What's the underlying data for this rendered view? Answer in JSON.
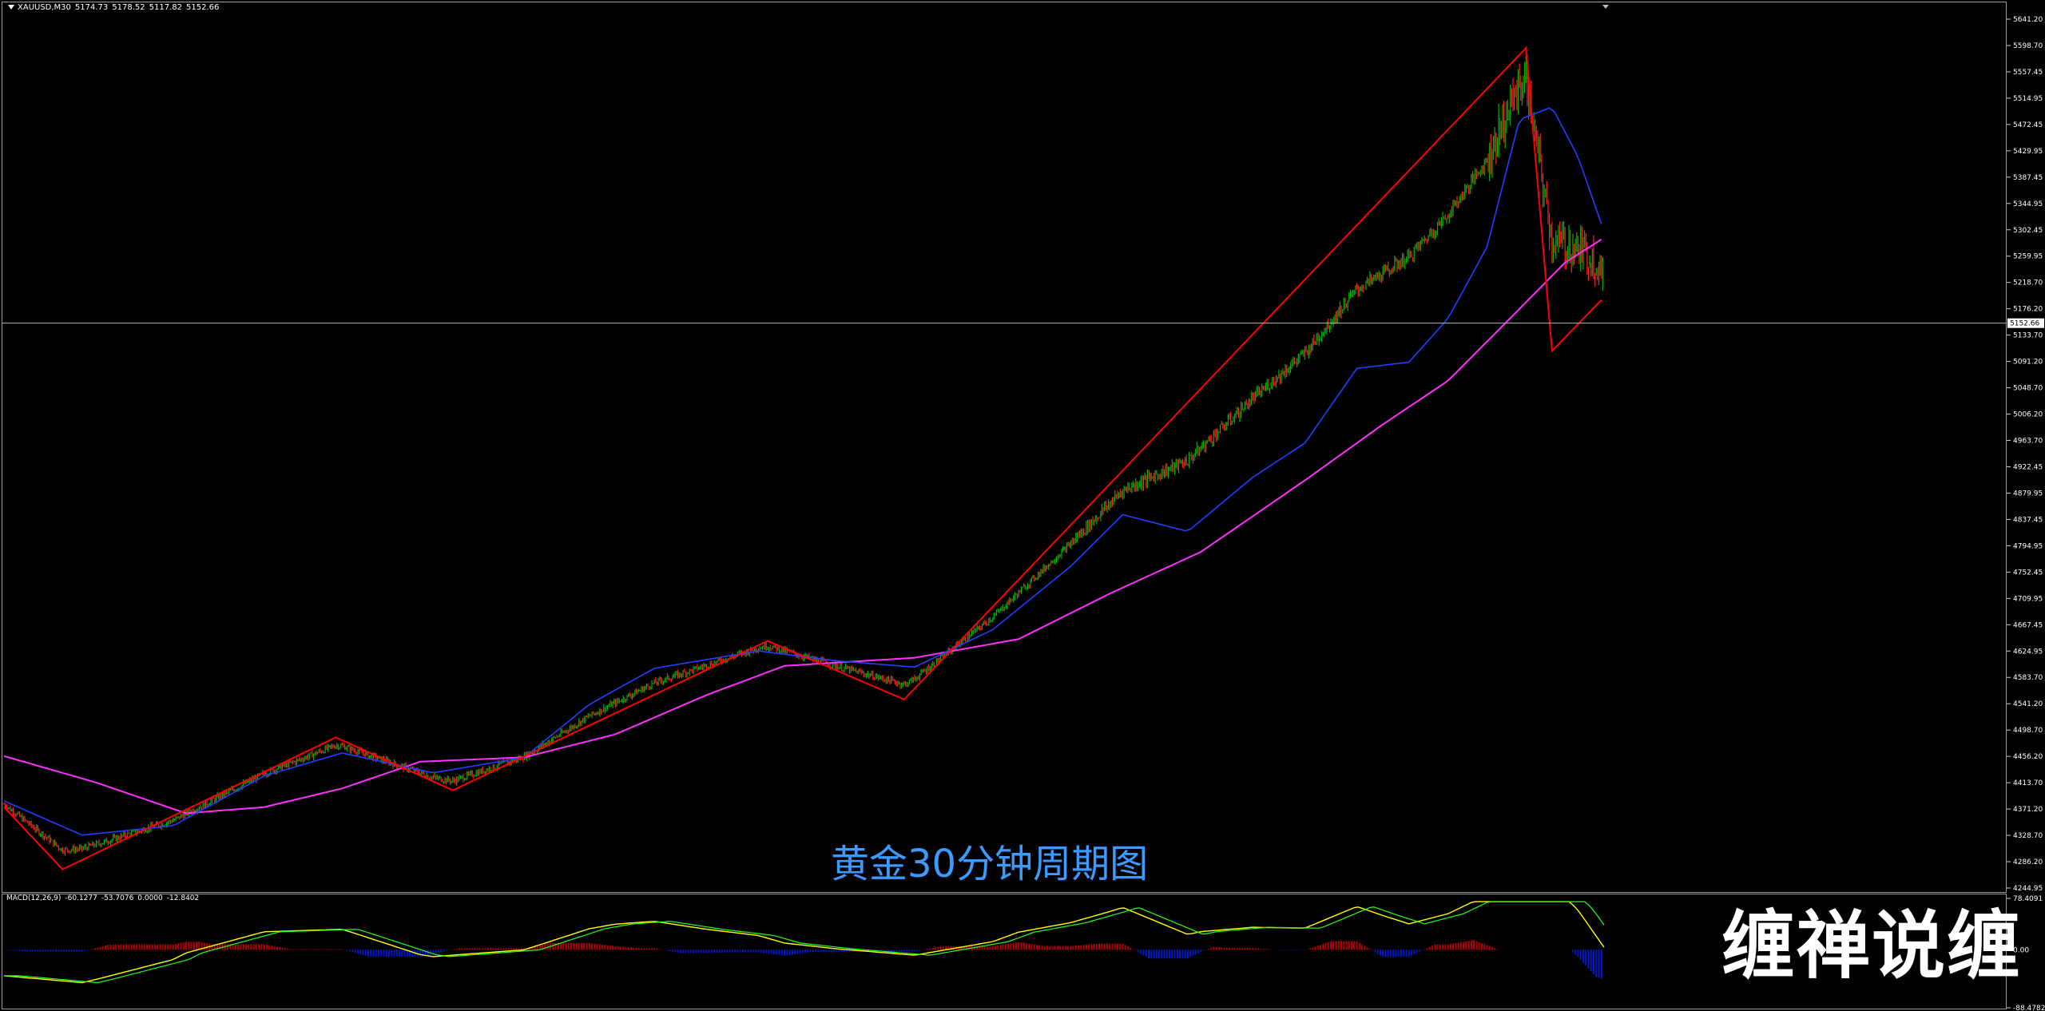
{
  "header": {
    "symbol": "XAUUSD,M30",
    "open": "5174.73",
    "high": "5178.52",
    "low": "5117.82",
    "close": "5152.66"
  },
  "caption": "黄金30分钟周期图",
  "watermark": "缠禅说缠",
  "colors": {
    "background": "#000000",
    "candle_up": "#00b400",
    "candle_down": "#ff2020",
    "zigzag": "#ff0000",
    "ma_fast": "#2040ff",
    "ma_slow": "#ff30ff",
    "macd_line": "#ffff00",
    "signal_line": "#20ff20",
    "hist_pos": "#b00000",
    "hist_neg": "#0018c8",
    "caption": "#3d9bff"
  },
  "macd_header": {
    "name": "MACD(12,26,9)",
    "v1": "-60.1277",
    "v2": "-53.7076",
    "v3": "0.0000",
    "v4": "-12.8402"
  },
  "chart_data": {
    "type": "candlestick",
    "price_axis": {
      "min": 4244.95,
      "max": 5641.2,
      "ticks": [
        "5641.20",
        "5598.70",
        "5557.45",
        "5514.95",
        "5472.45",
        "5429.95",
        "5387.45",
        "5344.95",
        "5302.45",
        "5259.95",
        "5218.70",
        "5176.20",
        "5133.70",
        "5091.20",
        "5048.70",
        "5006.20",
        "4963.70",
        "4922.45",
        "4879.95",
        "4837.45",
        "4794.95",
        "4752.45",
        "4709.95",
        "4667.45",
        "4624.95",
        "4583.70",
        "4541.20",
        "4498.70",
        "4456.20",
        "4413.70",
        "4371.20",
        "4328.70",
        "4286.20",
        "4244.95"
      ],
      "current_price": "5152.66"
    },
    "macd_axis": {
      "ticks": [
        "78.4091",
        "0.00",
        "-88.4782"
      ],
      "max": 78.4091,
      "min": -88.4782
    },
    "zigzag_points": [
      {
        "bar": 0,
        "price": 4375
      },
      {
        "bar": 45,
        "price": 4275
      },
      {
        "bar": 255,
        "price": 4487
      },
      {
        "bar": 345,
        "price": 4402
      },
      {
        "bar": 587,
        "price": 4642
      },
      {
        "bar": 692,
        "price": 4548
      },
      {
        "bar": 1170,
        "price": 5595
      },
      {
        "bar": 1190,
        "price": 5108
      },
      {
        "bar": 1228,
        "price": 5190
      }
    ],
    "ma_fast_points": [
      {
        "bar": 0,
        "price": 4385
      },
      {
        "bar": 60,
        "price": 4330
      },
      {
        "bar": 130,
        "price": 4345
      },
      {
        "bar": 200,
        "price": 4425
      },
      {
        "bar": 260,
        "price": 4462
      },
      {
        "bar": 330,
        "price": 4430
      },
      {
        "bar": 400,
        "price": 4455
      },
      {
        "bar": 450,
        "price": 4540
      },
      {
        "bar": 500,
        "price": 4598
      },
      {
        "bar": 580,
        "price": 4626
      },
      {
        "bar": 640,
        "price": 4610
      },
      {
        "bar": 700,
        "price": 4600
      },
      {
        "bar": 760,
        "price": 4660
      },
      {
        "bar": 820,
        "price": 4762
      },
      {
        "bar": 860,
        "price": 4845
      },
      {
        "bar": 910,
        "price": 4818
      },
      {
        "bar": 960,
        "price": 4905
      },
      {
        "bar": 1000,
        "price": 4960
      },
      {
        "bar": 1040,
        "price": 5080
      },
      {
        "bar": 1080,
        "price": 5090
      },
      {
        "bar": 1110,
        "price": 5160
      },
      {
        "bar": 1140,
        "price": 5275
      },
      {
        "bar": 1165,
        "price": 5480
      },
      {
        "bar": 1190,
        "price": 5500
      },
      {
        "bar": 1210,
        "price": 5420
      },
      {
        "bar": 1230,
        "price": 5300
      }
    ],
    "ma_slow_points": [
      {
        "bar": 0,
        "price": 4457
      },
      {
        "bar": 70,
        "price": 4415
      },
      {
        "bar": 140,
        "price": 4365
      },
      {
        "bar": 200,
        "price": 4375
      },
      {
        "bar": 260,
        "price": 4405
      },
      {
        "bar": 320,
        "price": 4448
      },
      {
        "bar": 400,
        "price": 4455
      },
      {
        "bar": 470,
        "price": 4492
      },
      {
        "bar": 540,
        "price": 4555
      },
      {
        "bar": 600,
        "price": 4602
      },
      {
        "bar": 700,
        "price": 4615
      },
      {
        "bar": 780,
        "price": 4645
      },
      {
        "bar": 850,
        "price": 4718
      },
      {
        "bar": 920,
        "price": 4785
      },
      {
        "bar": 1000,
        "price": 4900
      },
      {
        "bar": 1060,
        "price": 4990
      },
      {
        "bar": 1110,
        "price": 5060
      },
      {
        "bar": 1160,
        "price": 5165
      },
      {
        "bar": 1200,
        "price": 5250
      },
      {
        "bar": 1230,
        "price": 5290
      }
    ],
    "bars_total": 1230
  }
}
